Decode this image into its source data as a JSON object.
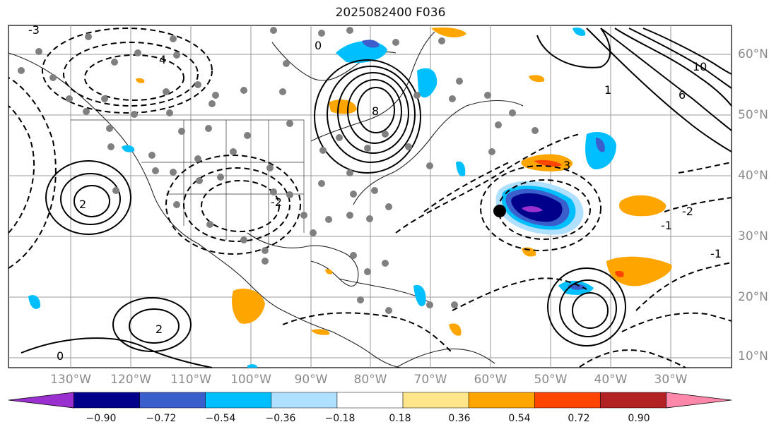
{
  "title": "2025082400 F036",
  "lat_labels": [
    "60°N",
    "50°N",
    "40°N",
    "30°N",
    "20°N",
    "10°N"
  ],
  "lon_labels": [
    "130°W",
    "120°W",
    "110°W",
    "100°W",
    "90°W",
    "80°W",
    "70°W",
    "60°W",
    "50°W",
    "40°W",
    "30°W"
  ],
  "colorbar": {
    "ticks": [
      "−0.90",
      "−0.72",
      "−0.54",
      "−0.36",
      "−0.18",
      "0.18",
      "0.36",
      "0.54",
      "0.72",
      "0.90"
    ],
    "colors": [
      "#9b30d0",
      "#00008b",
      "#3a5fcd",
      "#00bfff",
      "#b0e0ff",
      "#ffffff",
      "#ffe68a",
      "#ffa500",
      "#ff4500",
      "#b22222",
      "#ff88aa"
    ]
  },
  "contour_labels": [
    "0",
    "2",
    "-2",
    "-1",
    "1",
    "3",
    "4",
    "8",
    "10",
    "6",
    "-3",
    "0",
    "-2",
    "2",
    "-1"
  ]
}
